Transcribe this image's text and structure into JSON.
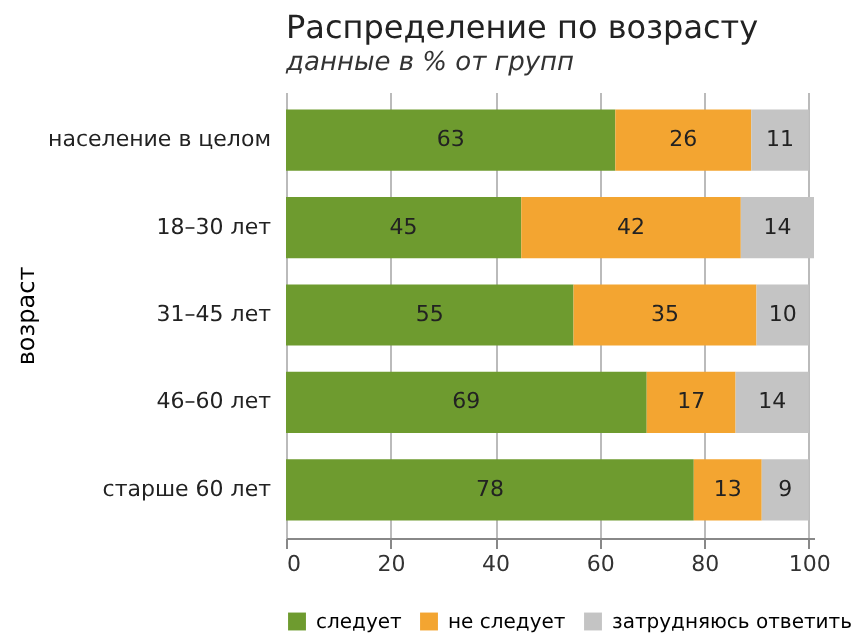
{
  "chart_data": {
    "type": "bar",
    "orientation": "horizontal",
    "stacked": true,
    "title": "Распределение по возрасту",
    "subtitle": "данные в % от групп",
    "ylabel": "возраст",
    "categories": [
      "население в целом",
      "18–30 лет",
      "31–45 лет",
      "46–60 лет",
      "старше 60 лет"
    ],
    "series": [
      {
        "name": "следует",
        "color": "#6e9b2f",
        "values": [
          63,
          45,
          55,
          69,
          78
        ]
      },
      {
        "name": "не следует",
        "color": "#f3a531",
        "values": [
          26,
          42,
          35,
          17,
          13
        ]
      },
      {
        "name": "затрудняюсь ответить",
        "color": "#c4c4c4",
        "values": [
          11,
          14,
          10,
          14,
          9
        ]
      }
    ],
    "xlim": [
      0,
      101
    ],
    "xticks": [
      0,
      20,
      40,
      60,
      80,
      100
    ],
    "grid": "x",
    "legend": "bottom",
    "data_labels": true
  }
}
